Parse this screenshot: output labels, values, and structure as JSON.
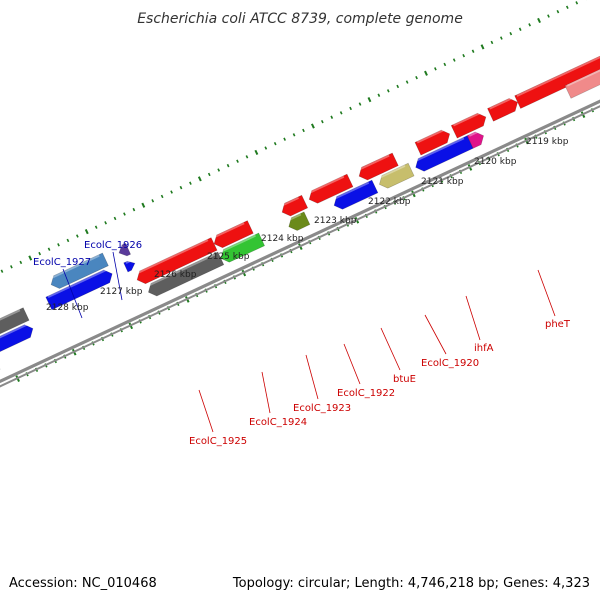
{
  "title": "Escherichia coli ATCC 8739, complete genome",
  "footer": {
    "accession": "Accession: NC_010468",
    "summary": "Topology: circular; Length: 4,746,218 bp; Genes: 4,323"
  },
  "kbp_labels": [
    "2119 kbp",
    "2120 kbp",
    "2121 kbp",
    "2122 kbp",
    "2123 kbp",
    "2124 kbp",
    "2125 kbp",
    "2126 kbp",
    "2127 kbp",
    "2128 kbp"
  ],
  "gene_labels": [
    {
      "text": "EcolC_1926",
      "color": "#0000aa"
    },
    {
      "text": "EcolC_1927",
      "color": "#0000aa"
    },
    {
      "text": "EcolC_1925",
      "color": "#cc0000"
    },
    {
      "text": "EcolC_1924",
      "color": "#cc0000"
    },
    {
      "text": "EcolC_1923",
      "color": "#cc0000"
    },
    {
      "text": "EcolC_1922",
      "color": "#cc0000"
    },
    {
      "text": "btuE",
      "color": "#cc0000"
    },
    {
      "text": "EcolC_1920",
      "color": "#cc0000"
    },
    {
      "text": "ihfA",
      "color": "#cc0000"
    },
    {
      "text": "pheT",
      "color": "#cc0000"
    }
  ],
  "colors": {
    "backbone": "#8a8a8a",
    "ticks": "#1f7a1f",
    "red": "#ee1111",
    "blue": "#0a10e6",
    "steel": "#4a86bf",
    "gray": "#5e5e5e",
    "green": "#33c433",
    "olive": "#6b8a1a",
    "khaki": "#c7be6c",
    "magenta": "#e0138a",
    "pink": "#f08a8a",
    "purple": "#5a3a9a",
    "cyan": "#19d2d2"
  }
}
